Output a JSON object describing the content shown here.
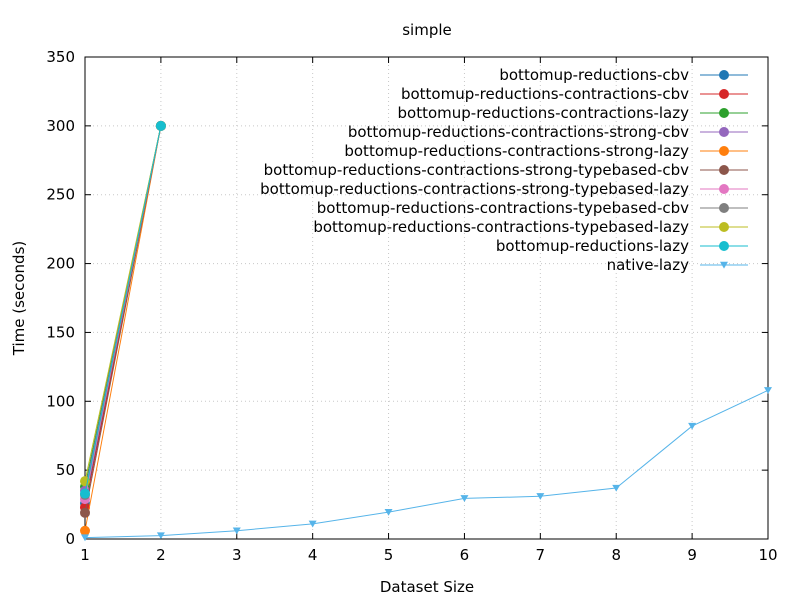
{
  "chart_data": {
    "type": "line",
    "title": "simple",
    "xlabel": "Dataset Size",
    "ylabel": "Time (seconds)",
    "xlim": [
      1,
      10
    ],
    "ylim": [
      0,
      350
    ],
    "x_ticks": [
      "1",
      "2",
      "3",
      "4",
      "5",
      "6",
      "7",
      "8",
      "9",
      "10"
    ],
    "y_ticks": [
      "0",
      "50",
      "100",
      "150",
      "200",
      "250",
      "300",
      "350"
    ],
    "grid": true,
    "legend_position": "top-right",
    "series": [
      {
        "name": "bottomup-reductions-cbv",
        "color": "#1f77b4",
        "marker": "circle",
        "x": [
          1,
          2
        ],
        "y": [
          26,
          300
        ]
      },
      {
        "name": "bottomup-reductions-contractions-cbv",
        "color": "#d62728",
        "marker": "circle",
        "x": [
          1,
          2
        ],
        "y": [
          23,
          300
        ]
      },
      {
        "name": "bottomup-reductions-contractions-lazy",
        "color": "#2ca02c",
        "marker": "circle",
        "x": [
          1,
          2
        ],
        "y": [
          38,
          300
        ]
      },
      {
        "name": "bottomup-reductions-contractions-strong-cbv",
        "color": "#9467bd",
        "marker": "circle",
        "x": [
          1,
          2
        ],
        "y": [
          35,
          300
        ]
      },
      {
        "name": "bottomup-reductions-contractions-strong-lazy",
        "color": "#ff7f0e",
        "marker": "circle",
        "x": [
          1,
          2
        ],
        "y": [
          6,
          300
        ]
      },
      {
        "name": "bottomup-reductions-contractions-strong-typebased-cbv",
        "color": "#8c564b",
        "marker": "circle",
        "x": [
          1,
          2
        ],
        "y": [
          19,
          300
        ]
      },
      {
        "name": "bottomup-reductions-contractions-strong-typebased-lazy",
        "color": "#e377c2",
        "marker": "circle",
        "x": [
          1,
          2
        ],
        "y": [
          29,
          300
        ]
      },
      {
        "name": "bottomup-reductions-contractions-typebased-cbv",
        "color": "#7f7f7f",
        "marker": "circle",
        "x": [
          1,
          2
        ],
        "y": [
          32,
          300
        ]
      },
      {
        "name": "bottomup-reductions-contractions-typebased-lazy",
        "color": "#bcbd22",
        "marker": "circle",
        "x": [
          1,
          2
        ],
        "y": [
          42,
          300
        ]
      },
      {
        "name": "bottomup-reductions-lazy",
        "color": "#17becf",
        "marker": "circle",
        "x": [
          1,
          2
        ],
        "y": [
          33,
          300
        ]
      },
      {
        "name": "native-lazy",
        "color": "#56b4e9",
        "marker": "triangle-down",
        "x": [
          1,
          2,
          3,
          4,
          5,
          6,
          7,
          8,
          9,
          10
        ],
        "y": [
          1,
          2.5,
          6,
          11,
          19.5,
          29.5,
          31,
          37,
          82,
          108
        ]
      }
    ]
  }
}
